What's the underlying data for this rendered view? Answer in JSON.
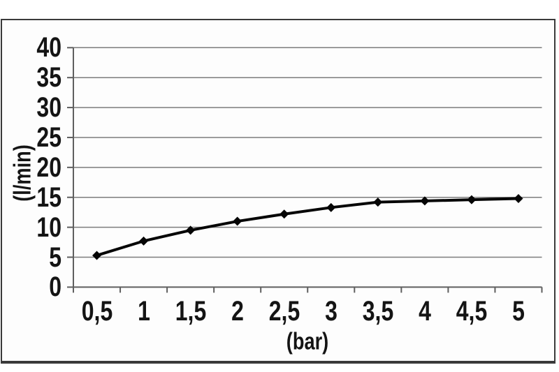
{
  "figure": {
    "background": "#ffffff",
    "frame_color": "#3a3a3a"
  },
  "chart_data": {
    "type": "line",
    "title": "",
    "categories": [
      "0,5",
      "1",
      "1,5",
      "2",
      "2,5",
      "3",
      "3,5",
      "4",
      "4,5",
      "5"
    ],
    "values": [
      5.3,
      7.7,
      9.5,
      11,
      12.2,
      13.3,
      14.2,
      14.4,
      14.6,
      14.8
    ],
    "xlabel": "(bar)",
    "ylabel": "(l/min)",
    "ylim": [
      0,
      40
    ],
    "ytick_step": 5,
    "ytick_labels": [
      "0",
      "5",
      "10",
      "15",
      "20",
      "25",
      "30",
      "35",
      "40"
    ],
    "grid": true,
    "legend": "none",
    "marker": "diamond",
    "line_color": "#050505",
    "marker_color": "#050505",
    "grid_color": "#7d7d7d",
    "axis_color": "#5f5f5f",
    "text_color": "#141414"
  }
}
